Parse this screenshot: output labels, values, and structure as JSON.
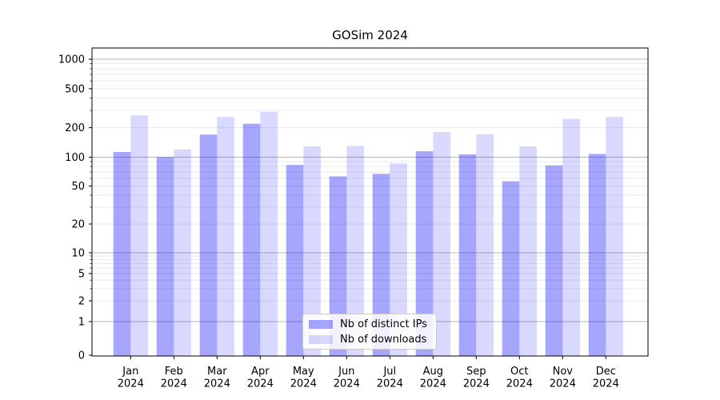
{
  "title": "GOSim 2024",
  "chart_data": {
    "type": "bar",
    "title": "GOSim 2024",
    "x_months": [
      "Jan",
      "Feb",
      "Mar",
      "Apr",
      "May",
      "Jun",
      "Jul",
      "Aug",
      "Sep",
      "Oct",
      "Nov",
      "Dec"
    ],
    "x_year": "2024",
    "series": [
      {
        "name": "Nb of distinct IPs",
        "color": "rgba(0,0,255,0.35)",
        "values": [
          113,
          100,
          170,
          220,
          83,
          63,
          67,
          115,
          107,
          56,
          82,
          108
        ]
      },
      {
        "name": "Nb of downloads",
        "color": "rgba(0,0,255,0.15)",
        "values": [
          268,
          120,
          258,
          291,
          129,
          130,
          86,
          181,
          172,
          129,
          246,
          258
        ]
      }
    ],
    "y_scale": "symlog",
    "y_ticks": [
      0,
      1,
      2,
      5,
      10,
      20,
      50,
      100,
      200,
      500,
      1000
    ],
    "y_major_gridlines": [
      1,
      10,
      100,
      1000
    ],
    "y_minor_gridlines": [
      2,
      3,
      4,
      5,
      6,
      7,
      8,
      9,
      20,
      30,
      40,
      50,
      60,
      70,
      80,
      90,
      200,
      300,
      400,
      500,
      600,
      700,
      800,
      900
    ],
    "ylim": [
      0,
      1000
    ],
    "grid": "both",
    "legend_position": "lower center",
    "colors": {
      "bar_distinct_ips": "rgba(0,0,255,0.35)",
      "bar_downloads": "rgba(0,0,255,0.15)",
      "grid_major": "#b4b4b4",
      "grid_minor": "#e8e8e8",
      "spine": "#000000",
      "text": "#000000"
    }
  }
}
